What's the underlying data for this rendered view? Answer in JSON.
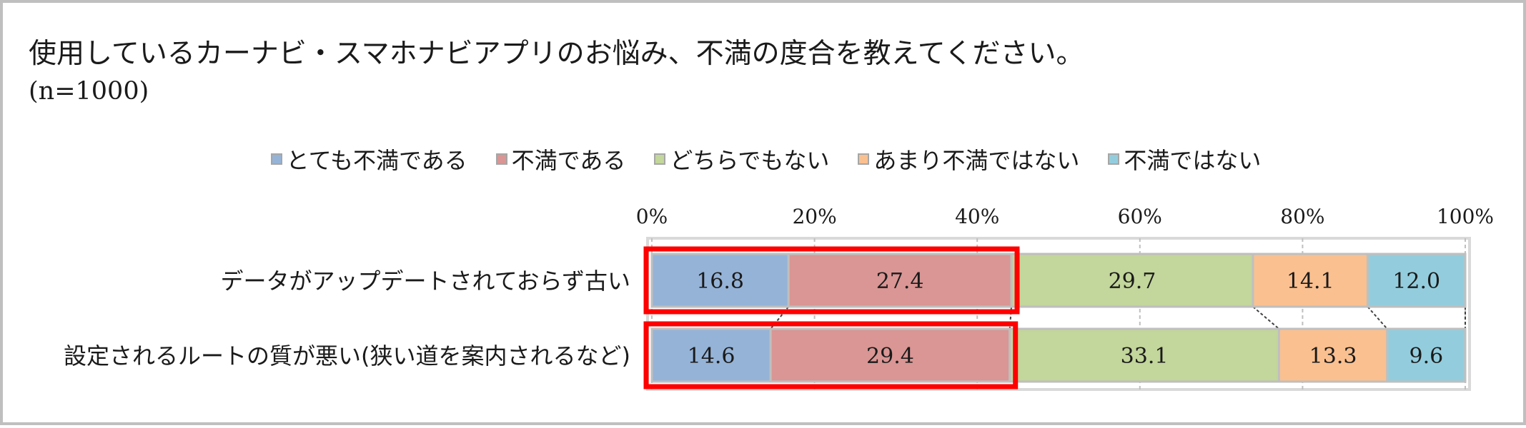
{
  "title": "使用しているカーナビ・スマホナビアプリのお悩み、不満の度合を教えてください。",
  "subtitle": "(n=1000)",
  "chart_data": {
    "type": "bar",
    "orientation": "horizontal",
    "stacked": "percent",
    "categories": [
      "データがアップデートされておらず古い",
      "設定されるルートの質が悪い(狭い道を案内されるなど)"
    ],
    "series": [
      {
        "name": "とても不満である",
        "color": "#95b3d7",
        "values": [
          16.8,
          14.6
        ]
      },
      {
        "name": "不満である",
        "color": "#d99694",
        "values": [
          27.4,
          29.4
        ]
      },
      {
        "name": "どちらでもない",
        "color": "#c3d69b",
        "values": [
          29.7,
          33.1
        ]
      },
      {
        "name": "あまり不満ではない",
        "color": "#fac090",
        "values": [
          14.1,
          13.3
        ]
      },
      {
        "name": "不満ではない",
        "color": "#93cddd",
        "values": [
          12.0,
          9.6
        ]
      }
    ],
    "x_ticks": [
      "0%",
      "20%",
      "40%",
      "60%",
      "80%",
      "100%"
    ],
    "xlim": [
      0,
      100
    ],
    "legend_position": "top",
    "grid": true,
    "highlight_color": "#ff0000",
    "highlight_series": [
      "とても不満である",
      "不満である"
    ]
  }
}
